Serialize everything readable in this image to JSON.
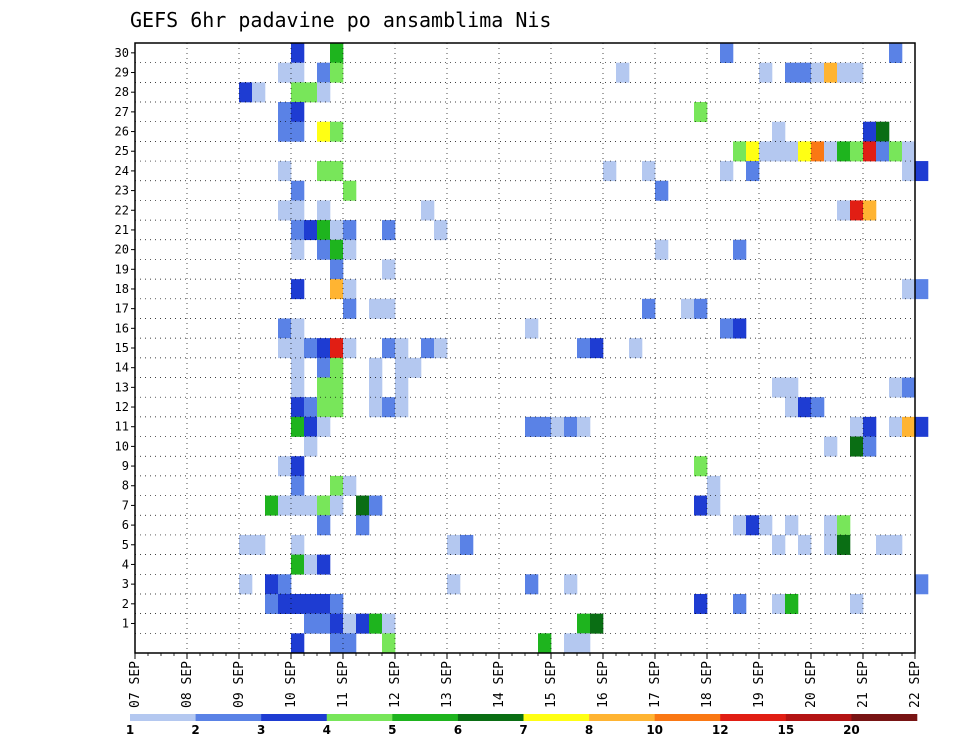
{
  "chart_data": {
    "type": "heatmap",
    "title": "GEFS 6hr padavine po ansamblima Nis",
    "xlabel": "",
    "ylabel": "",
    "x_tick_labels": [
      "07 SEP",
      "08 SEP",
      "09 SEP",
      "10 SEP",
      "11 SEP",
      "12 SEP",
      "13 SEP",
      "14 SEP",
      "15 SEP",
      "16 SEP",
      "17 SEP",
      "18 SEP",
      "19 SEP",
      "20 SEP",
      "21 SEP",
      "22 SEP"
    ],
    "y_tick_labels": [
      "1",
      "2",
      "3",
      "4",
      "5",
      "6",
      "7",
      "8",
      "9",
      "10",
      "11",
      "12",
      "13",
      "14",
      "15",
      "16",
      "17",
      "18",
      "19",
      "20",
      "21",
      "22",
      "23",
      "24",
      "25",
      "26",
      "27",
      "28",
      "29",
      "30"
    ],
    "grid": true,
    "steps_per_day": 4,
    "color_scale": {
      "labels": [
        "1",
        "2",
        "3",
        "4",
        "5",
        "6",
        "7",
        "8",
        "10",
        "12",
        "15",
        "20"
      ],
      "colors": [
        "#b4c8f0",
        "#5a82e6",
        "#1e3cd2",
        "#78e65a",
        "#1eb41e",
        "#0a6e14",
        "#ffff14",
        "#ffb432",
        "#fa7814",
        "#e11e14",
        "#b41414",
        "#781414"
      ]
    },
    "cells": [
      {
        "m": 30,
        "t": 12,
        "c": 2
      },
      {
        "m": 30,
        "t": 15,
        "c": 4
      },
      {
        "m": 30,
        "t": 45,
        "c": 1
      },
      {
        "m": 30,
        "t": 58,
        "c": 1
      },
      {
        "m": 29,
        "t": 11,
        "c": 0
      },
      {
        "m": 29,
        "t": 12,
        "c": 0
      },
      {
        "m": 29,
        "t": 14,
        "c": 1
      },
      {
        "m": 29,
        "t": 15,
        "c": 3
      },
      {
        "m": 29,
        "t": 37,
        "c": 0
      },
      {
        "m": 29,
        "t": 48,
        "c": 0
      },
      {
        "m": 29,
        "t": 50,
        "c": 1
      },
      {
        "m": 29,
        "t": 51,
        "c": 1
      },
      {
        "m": 29,
        "t": 52,
        "c": 0
      },
      {
        "m": 29,
        "t": 53,
        "c": 7
      },
      {
        "m": 29,
        "t": 54,
        "c": 0
      },
      {
        "m": 29,
        "t": 55,
        "c": 0
      },
      {
        "m": 28,
        "t": 8,
        "c": 2
      },
      {
        "m": 28,
        "t": 9,
        "c": 0
      },
      {
        "m": 28,
        "t": 12,
        "c": 3
      },
      {
        "m": 28,
        "t": 13,
        "c": 3
      },
      {
        "m": 28,
        "t": 14,
        "c": 0
      },
      {
        "m": 27,
        "t": 11,
        "c": 1
      },
      {
        "m": 27,
        "t": 12,
        "c": 2
      },
      {
        "m": 27,
        "t": 43,
        "c": 3
      },
      {
        "m": 26,
        "t": 11,
        "c": 1
      },
      {
        "m": 26,
        "t": 12,
        "c": 1
      },
      {
        "m": 26,
        "t": 14,
        "c": 6
      },
      {
        "m": 26,
        "t": 15,
        "c": 3
      },
      {
        "m": 26,
        "t": 49,
        "c": 0
      },
      {
        "m": 26,
        "t": 56,
        "c": 2
      },
      {
        "m": 26,
        "t": 57,
        "c": 5
      },
      {
        "m": 25,
        "t": 46,
        "c": 3
      },
      {
        "m": 25,
        "t": 47,
        "c": 6
      },
      {
        "m": 25,
        "t": 48,
        "c": 0
      },
      {
        "m": 25,
        "t": 49,
        "c": 0
      },
      {
        "m": 25,
        "t": 50,
        "c": 0
      },
      {
        "m": 25,
        "t": 51,
        "c": 6
      },
      {
        "m": 25,
        "t": 52,
        "c": 8
      },
      {
        "m": 25,
        "t": 53,
        "c": 0
      },
      {
        "m": 25,
        "t": 54,
        "c": 4
      },
      {
        "m": 25,
        "t": 55,
        "c": 3
      },
      {
        "m": 25,
        "t": 56,
        "c": 9
      },
      {
        "m": 25,
        "t": 57,
        "c": 1
      },
      {
        "m": 25,
        "t": 58,
        "c": 3
      },
      {
        "m": 25,
        "t": 59,
        "c": 0
      },
      {
        "m": 24,
        "t": 11,
        "c": 0
      },
      {
        "m": 24,
        "t": 14,
        "c": 3
      },
      {
        "m": 24,
        "t": 15,
        "c": 3
      },
      {
        "m": 24,
        "t": 36,
        "c": 0
      },
      {
        "m": 24,
        "t": 39,
        "c": 0
      },
      {
        "m": 24,
        "t": 45,
        "c": 0
      },
      {
        "m": 24,
        "t": 47,
        "c": 1
      },
      {
        "m": 24,
        "t": 59,
        "c": 0
      },
      {
        "m": 24,
        "t": 60,
        "c": 2
      },
      {
        "m": 23,
        "t": 12,
        "c": 1
      },
      {
        "m": 23,
        "t": 16,
        "c": 3
      },
      {
        "m": 23,
        "t": 40,
        "c": 1
      },
      {
        "m": 22,
        "t": 11,
        "c": 0
      },
      {
        "m": 22,
        "t": 12,
        "c": 0
      },
      {
        "m": 22,
        "t": 14,
        "c": 0
      },
      {
        "m": 22,
        "t": 22,
        "c": 0
      },
      {
        "m": 22,
        "t": 54,
        "c": 0
      },
      {
        "m": 22,
        "t": 55,
        "c": 9
      },
      {
        "m": 22,
        "t": 56,
        "c": 7
      },
      {
        "m": 21,
        "t": 12,
        "c": 1
      },
      {
        "m": 21,
        "t": 13,
        "c": 2
      },
      {
        "m": 21,
        "t": 14,
        "c": 4
      },
      {
        "m": 21,
        "t": 15,
        "c": 0
      },
      {
        "m": 21,
        "t": 16,
        "c": 1
      },
      {
        "m": 21,
        "t": 19,
        "c": 1
      },
      {
        "m": 21,
        "t": 23,
        "c": 0
      },
      {
        "m": 20,
        "t": 12,
        "c": 0
      },
      {
        "m": 20,
        "t": 14,
        "c": 1
      },
      {
        "m": 20,
        "t": 15,
        "c": 4
      },
      {
        "m": 20,
        "t": 16,
        "c": 0
      },
      {
        "m": 20,
        "t": 40,
        "c": 0
      },
      {
        "m": 20,
        "t": 46,
        "c": 1
      },
      {
        "m": 19,
        "t": 15,
        "c": 1
      },
      {
        "m": 19,
        "t": 19,
        "c": 0
      },
      {
        "m": 18,
        "t": 12,
        "c": 2
      },
      {
        "m": 18,
        "t": 15,
        "c": 7
      },
      {
        "m": 18,
        "t": 16,
        "c": 0
      },
      {
        "m": 18,
        "t": 59,
        "c": 0
      },
      {
        "m": 18,
        "t": 60,
        "c": 1
      },
      {
        "m": 17,
        "t": 16,
        "c": 1
      },
      {
        "m": 17,
        "t": 18,
        "c": 0
      },
      {
        "m": 17,
        "t": 19,
        "c": 0
      },
      {
        "m": 17,
        "t": 39,
        "c": 1
      },
      {
        "m": 17,
        "t": 42,
        "c": 0
      },
      {
        "m": 17,
        "t": 43,
        "c": 1
      },
      {
        "m": 16,
        "t": 11,
        "c": 1
      },
      {
        "m": 16,
        "t": 12,
        "c": 0
      },
      {
        "m": 16,
        "t": 30,
        "c": 0
      },
      {
        "m": 16,
        "t": 45,
        "c": 1
      },
      {
        "m": 16,
        "t": 46,
        "c": 2
      },
      {
        "m": 15,
        "t": 11,
        "c": 0
      },
      {
        "m": 15,
        "t": 12,
        "c": 0
      },
      {
        "m": 15,
        "t": 13,
        "c": 1
      },
      {
        "m": 15,
        "t": 14,
        "c": 2
      },
      {
        "m": 15,
        "t": 15,
        "c": 9
      },
      {
        "m": 15,
        "t": 16,
        "c": 0
      },
      {
        "m": 15,
        "t": 19,
        "c": 1
      },
      {
        "m": 15,
        "t": 20,
        "c": 0
      },
      {
        "m": 15,
        "t": 22,
        "c": 1
      },
      {
        "m": 15,
        "t": 23,
        "c": 0
      },
      {
        "m": 15,
        "t": 34,
        "c": 1
      },
      {
        "m": 15,
        "t": 35,
        "c": 2
      },
      {
        "m": 15,
        "t": 38,
        "c": 0
      },
      {
        "m": 14,
        "t": 12,
        "c": 0
      },
      {
        "m": 14,
        "t": 14,
        "c": 1
      },
      {
        "m": 14,
        "t": 15,
        "c": 3
      },
      {
        "m": 14,
        "t": 18,
        "c": 0
      },
      {
        "m": 14,
        "t": 20,
        "c": 0
      },
      {
        "m": 14,
        "t": 21,
        "c": 0
      },
      {
        "m": 13,
        "t": 12,
        "c": 0
      },
      {
        "m": 13,
        "t": 14,
        "c": 3
      },
      {
        "m": 13,
        "t": 15,
        "c": 3
      },
      {
        "m": 13,
        "t": 18,
        "c": 0
      },
      {
        "m": 13,
        "t": 20,
        "c": 0
      },
      {
        "m": 13,
        "t": 49,
        "c": 0
      },
      {
        "m": 13,
        "t": 50,
        "c": 0
      },
      {
        "m": 13,
        "t": 58,
        "c": 0
      },
      {
        "m": 13,
        "t": 59,
        "c": 1
      },
      {
        "m": 12,
        "t": 12,
        "c": 2
      },
      {
        "m": 12,
        "t": 13,
        "c": 1
      },
      {
        "m": 12,
        "t": 14,
        "c": 3
      },
      {
        "m": 12,
        "t": 15,
        "c": 3
      },
      {
        "m": 12,
        "t": 18,
        "c": 0
      },
      {
        "m": 12,
        "t": 19,
        "c": 1
      },
      {
        "m": 12,
        "t": 20,
        "c": 0
      },
      {
        "m": 12,
        "t": 50,
        "c": 0
      },
      {
        "m": 12,
        "t": 51,
        "c": 2
      },
      {
        "m": 12,
        "t": 52,
        "c": 1
      },
      {
        "m": 11,
        "t": 12,
        "c": 4
      },
      {
        "m": 11,
        "t": 13,
        "c": 2
      },
      {
        "m": 11,
        "t": 14,
        "c": 0
      },
      {
        "m": 11,
        "t": 30,
        "c": 1
      },
      {
        "m": 11,
        "t": 31,
        "c": 1
      },
      {
        "m": 11,
        "t": 32,
        "c": 0
      },
      {
        "m": 11,
        "t": 33,
        "c": 1
      },
      {
        "m": 11,
        "t": 34,
        "c": 0
      },
      {
        "m": 11,
        "t": 55,
        "c": 0
      },
      {
        "m": 11,
        "t": 56,
        "c": 2
      },
      {
        "m": 11,
        "t": 58,
        "c": 0
      },
      {
        "m": 11,
        "t": 59,
        "c": 7
      },
      {
        "m": 11,
        "t": 60,
        "c": 2
      },
      {
        "m": 10,
        "t": 13,
        "c": 0
      },
      {
        "m": 10,
        "t": 53,
        "c": 0
      },
      {
        "m": 10,
        "t": 55,
        "c": 5
      },
      {
        "m": 10,
        "t": 56,
        "c": 1
      },
      {
        "m": 9,
        "t": 11,
        "c": 0
      },
      {
        "m": 9,
        "t": 12,
        "c": 2
      },
      {
        "m": 9,
        "t": 43,
        "c": 3
      },
      {
        "m": 8,
        "t": 12,
        "c": 1
      },
      {
        "m": 8,
        "t": 15,
        "c": 3
      },
      {
        "m": 8,
        "t": 16,
        "c": 0
      },
      {
        "m": 8,
        "t": 44,
        "c": 0
      },
      {
        "m": 7,
        "t": 10,
        "c": 4
      },
      {
        "m": 7,
        "t": 11,
        "c": 0
      },
      {
        "m": 7,
        "t": 12,
        "c": 0
      },
      {
        "m": 7,
        "t": 13,
        "c": 0
      },
      {
        "m": 7,
        "t": 14,
        "c": 3
      },
      {
        "m": 7,
        "t": 15,
        "c": 0
      },
      {
        "m": 7,
        "t": 17,
        "c": 5
      },
      {
        "m": 7,
        "t": 18,
        "c": 1
      },
      {
        "m": 7,
        "t": 43,
        "c": 2
      },
      {
        "m": 7,
        "t": 44,
        "c": 0
      },
      {
        "m": 6,
        "t": 14,
        "c": 1
      },
      {
        "m": 6,
        "t": 17,
        "c": 1
      },
      {
        "m": 6,
        "t": 46,
        "c": 0
      },
      {
        "m": 6,
        "t": 47,
        "c": 2
      },
      {
        "m": 6,
        "t": 48,
        "c": 0
      },
      {
        "m": 6,
        "t": 50,
        "c": 0
      },
      {
        "m": 6,
        "t": 53,
        "c": 0
      },
      {
        "m": 6,
        "t": 54,
        "c": 3
      },
      {
        "m": 5,
        "t": 8,
        "c": 0
      },
      {
        "m": 5,
        "t": 9,
        "c": 0
      },
      {
        "m": 5,
        "t": 12,
        "c": 0
      },
      {
        "m": 5,
        "t": 24,
        "c": 0
      },
      {
        "m": 5,
        "t": 25,
        "c": 1
      },
      {
        "m": 5,
        "t": 49,
        "c": 0
      },
      {
        "m": 5,
        "t": 51,
        "c": 0
      },
      {
        "m": 5,
        "t": 53,
        "c": 0
      },
      {
        "m": 5,
        "t": 54,
        "c": 5
      },
      {
        "m": 5,
        "t": 57,
        "c": 0
      },
      {
        "m": 5,
        "t": 58,
        "c": 0
      },
      {
        "m": 4,
        "t": 12,
        "c": 4
      },
      {
        "m": 4,
        "t": 13,
        "c": 0
      },
      {
        "m": 4,
        "t": 14,
        "c": 2
      },
      {
        "m": 3,
        "t": 8,
        "c": 0
      },
      {
        "m": 3,
        "t": 10,
        "c": 2
      },
      {
        "m": 3,
        "t": 11,
        "c": 1
      },
      {
        "m": 3,
        "t": 24,
        "c": 0
      },
      {
        "m": 3,
        "t": 30,
        "c": 1
      },
      {
        "m": 3,
        "t": 33,
        "c": 0
      },
      {
        "m": 3,
        "t": 60,
        "c": 1
      },
      {
        "m": 2,
        "t": 10,
        "c": 1
      },
      {
        "m": 2,
        "t": 11,
        "c": 2
      },
      {
        "m": 2,
        "t": 12,
        "c": 2
      },
      {
        "m": 2,
        "t": 13,
        "c": 2
      },
      {
        "m": 2,
        "t": 14,
        "c": 2
      },
      {
        "m": 2,
        "t": 15,
        "c": 1
      },
      {
        "m": 2,
        "t": 43,
        "c": 2
      },
      {
        "m": 2,
        "t": 46,
        "c": 1
      },
      {
        "m": 2,
        "t": 49,
        "c": 0
      },
      {
        "m": 2,
        "t": 50,
        "c": 4
      },
      {
        "m": 2,
        "t": 55,
        "c": 0
      },
      {
        "m": 1,
        "t": 13,
        "c": 1
      },
      {
        "m": 1,
        "t": 14,
        "c": 1
      },
      {
        "m": 1,
        "t": 15,
        "c": 2
      },
      {
        "m": 1,
        "t": 16,
        "c": 0
      },
      {
        "m": 1,
        "t": 17,
        "c": 2
      },
      {
        "m": 1,
        "t": 18,
        "c": 4
      },
      {
        "m": 1,
        "t": 19,
        "c": 0
      },
      {
        "m": 1,
        "t": 34,
        "c": 4
      },
      {
        "m": 1,
        "t": 35,
        "c": 5
      },
      {
        "m": 0,
        "t": 12,
        "c": 2
      },
      {
        "m": 0,
        "t": 15,
        "c": 1
      },
      {
        "m": 0,
        "t": 16,
        "c": 1
      },
      {
        "m": 0,
        "t": 19,
        "c": 3
      },
      {
        "m": 0,
        "t": 31,
        "c": 4
      },
      {
        "m": 0,
        "t": 33,
        "c": 0
      },
      {
        "m": 0,
        "t": 34,
        "c": 0
      }
    ]
  }
}
